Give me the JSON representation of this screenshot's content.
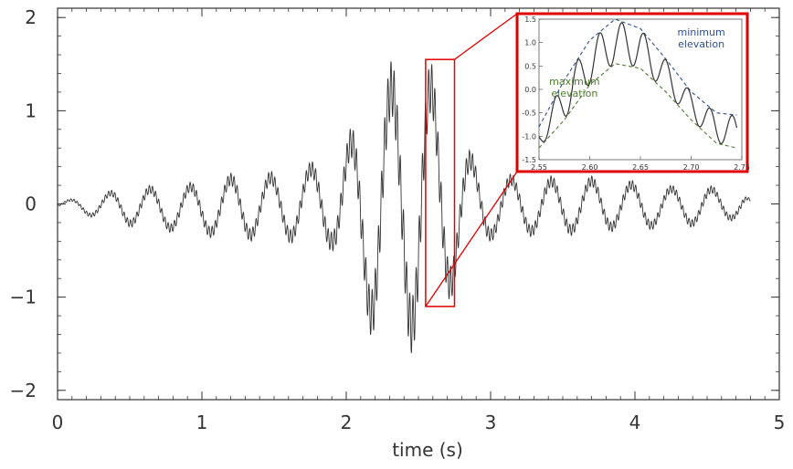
{
  "chart_data": [
    {
      "type": "line",
      "title": "",
      "xlabel": "time (s)",
      "ylabel": "",
      "xlim": [
        0,
        5
      ],
      "ylim": [
        -2.1,
        2.1
      ],
      "x_ticks": [
        0,
        1,
        2,
        3,
        4,
        5
      ],
      "x_tick_labels": [
        "0",
        "1",
        "2",
        "3",
        "4",
        "5"
      ],
      "y_ticks": [
        -2,
        -1,
        0,
        1,
        2
      ],
      "y_tick_labels": [
        "−2",
        "−1",
        "0",
        "1",
        "2"
      ],
      "grid": false,
      "series": [
        {
          "color": "#333333",
          "x": [
            0.0,
            0.25,
            0.5,
            0.75,
            1.0,
            1.25,
            1.5,
            1.75,
            1.9,
            2.0,
            2.1,
            2.2,
            2.3,
            2.4,
            2.5,
            2.6,
            2.7,
            2.8,
            2.9,
            3.0,
            3.25,
            3.5,
            3.75,
            4.0,
            4.25,
            4.5,
            4.75,
            4.8
          ],
          "envelope_upper": [
            0.03,
            0.1,
            0.2,
            0.2,
            0.25,
            0.35,
            0.35,
            0.45,
            0.6,
            0.75,
            0.95,
            1.45,
            1.5,
            1.8,
            1.6,
            1.5,
            1.1,
            0.7,
            0.5,
            0.35,
            0.3,
            0.3,
            0.3,
            0.25,
            0.2,
            0.2,
            0.15,
            0.05
          ],
          "envelope_lower": [
            -0.05,
            -0.15,
            -0.25,
            -0.3,
            -0.35,
            -0.4,
            -0.4,
            -0.45,
            -0.5,
            -0.85,
            -1.2,
            -1.5,
            -1.75,
            -1.45,
            -1.75,
            -1.4,
            -1.1,
            -0.8,
            -0.5,
            -0.4,
            -0.35,
            -0.35,
            -0.3,
            -0.3,
            -0.25,
            -0.25,
            -0.15,
            -0.05
          ]
        }
      ]
    },
    {
      "type": "line",
      "title": "",
      "xlim": [
        2.55,
        2.75
      ],
      "ylim": [
        -1.5,
        1.5
      ],
      "x_ticks": [
        2.55,
        2.6,
        2.65,
        2.7,
        2.75
      ],
      "x_tick_labels": [
        "2.55",
        "2.60",
        "2.65",
        "2.70",
        "2.75"
      ],
      "y_ticks": [
        1.5,
        1.0,
        0.5,
        0.0,
        -0.5,
        -1.0,
        -1.5
      ],
      "y_tick_labels": [
        "1.5",
        "1.0",
        "0.5",
        "0.0",
        "-0.5",
        "-1.0",
        "-1.5"
      ],
      "grid": false,
      "annotations": [
        {
          "text_lines": [
            "minimum",
            "elevation"
          ],
          "color": "#2e4f8f",
          "x": 2.71,
          "y": 1.15
        },
        {
          "text_lines": [
            "maximum",
            "elevation"
          ],
          "color": "#4c7a2b",
          "x": 2.585,
          "y": 0.1
        }
      ],
      "series": [
        {
          "name": "",
          "color": "#333333",
          "x": [
            2.55,
            2.575,
            2.6,
            2.625,
            2.65,
            2.675,
            2.7,
            2.725,
            2.745
          ],
          "y": [
            -1.05,
            -0.35,
            0.55,
            1.2,
            1.0,
            0.25,
            -0.45,
            -1.15,
            -1.25
          ]
        },
        {
          "name": "minimum elevation",
          "color": "#2e4f8f",
          "dashed": true,
          "x": [
            2.55,
            2.575,
            2.6,
            2.625,
            2.65,
            2.675,
            2.7,
            2.725,
            2.745
          ],
          "y": [
            -0.8,
            0.2,
            1.05,
            1.5,
            1.3,
            0.65,
            -0.05,
            -0.5,
            -0.55
          ]
        },
        {
          "name": "maximum elevation",
          "color": "#4c7a2b",
          "dashed": true,
          "x": [
            2.55,
            2.575,
            2.6,
            2.625,
            2.65,
            2.675,
            2.7,
            2.725,
            2.745
          ],
          "y": [
            -1.25,
            -0.65,
            0.1,
            0.55,
            0.45,
            -0.05,
            -0.65,
            -1.15,
            -1.25
          ]
        }
      ]
    }
  ],
  "zoom_box": {
    "x": [
      2.55,
      2.75
    ],
    "y": [
      -1.1,
      1.55
    ],
    "color": "#e00000"
  }
}
